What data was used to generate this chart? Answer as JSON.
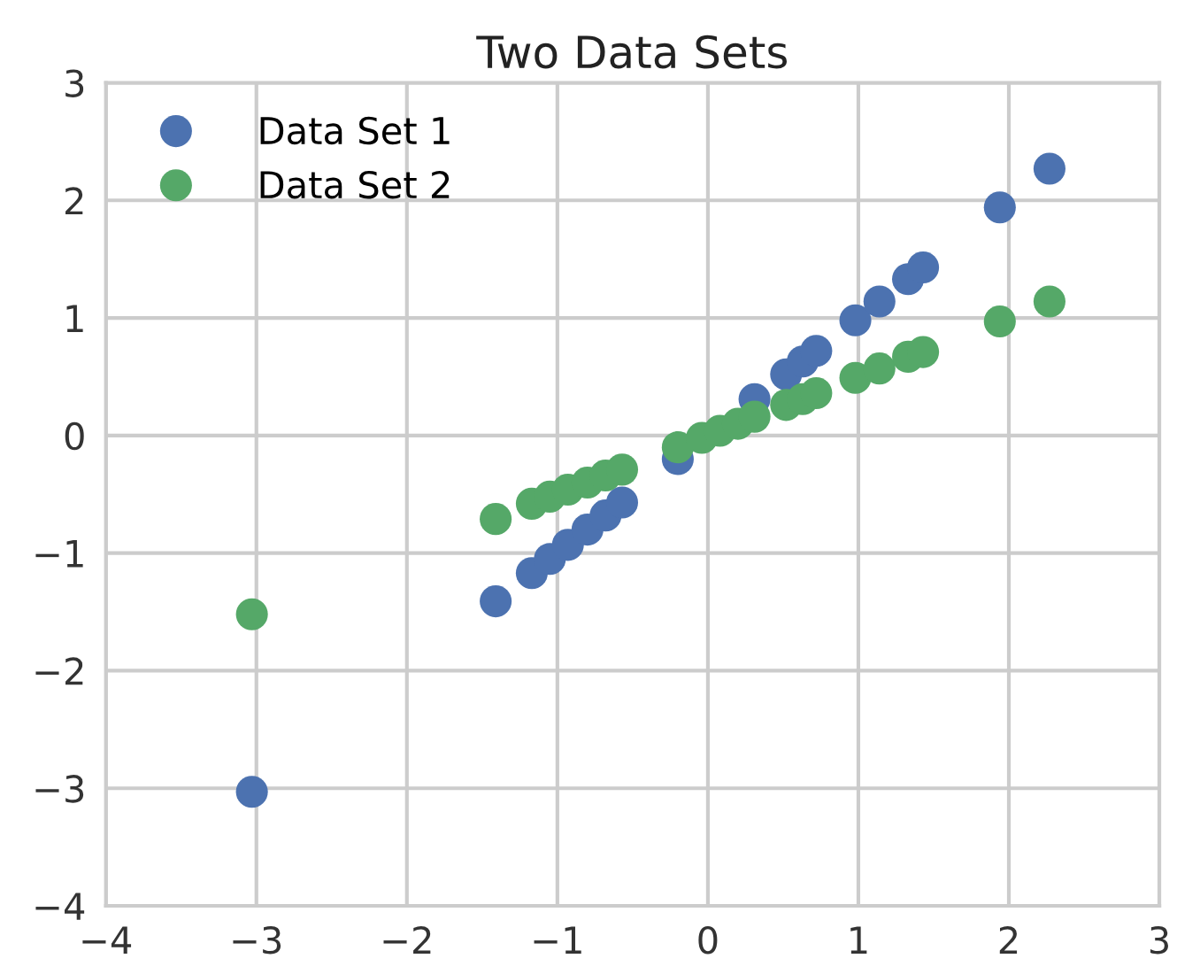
{
  "chart_data": {
    "type": "scatter",
    "title": "Two Data Sets",
    "marker": "circle",
    "grid": true,
    "legend": "top left",
    "xlim": [
      -4,
      3
    ],
    "xticks": [
      {
        "value": -4,
        "label": "−4"
      },
      {
        "value": -3,
        "label": "−3"
      },
      {
        "value": -2,
        "label": "−2"
      },
      {
        "value": -1,
        "label": "−1"
      },
      0,
      1,
      2,
      3
    ],
    "ylim": [
      -4,
      3
    ],
    "yticks": [
      {
        "value": -4,
        "label": "−4"
      },
      {
        "value": -3,
        "label": "−3"
      },
      {
        "value": -2,
        "label": "−2"
      },
      {
        "value": -1,
        "label": "−1"
      },
      0,
      1,
      2,
      3
    ],
    "x": [
      -3.03,
      -1.41,
      -1.17,
      -1.05,
      -0.93,
      -0.8,
      -0.68,
      -0.57,
      -0.2,
      -0.04,
      0.08,
      0.2,
      0.31,
      0.52,
      0.63,
      0.72,
      0.98,
      1.14,
      1.33,
      1.43,
      1.94,
      2.27
    ],
    "series": [
      {
        "name": "Data Set 1",
        "color": "#4c72b0",
        "values": [
          -3.03,
          -1.41,
          -1.17,
          -1.05,
          -0.93,
          -0.8,
          -0.68,
          -0.57,
          -0.2,
          null,
          null,
          null,
          0.31,
          0.52,
          0.63,
          0.72,
          0.98,
          1.14,
          1.33,
          1.43,
          1.94,
          2.27
        ]
      },
      {
        "name": "Data Set 2",
        "color": "#55a868",
        "values": [
          -1.52,
          -0.71,
          -0.58,
          -0.52,
          -0.46,
          -0.4,
          -0.34,
          -0.29,
          -0.1,
          -0.02,
          0.04,
          0.1,
          0.16,
          0.26,
          0.31,
          0.36,
          0.49,
          0.57,
          0.67,
          0.71,
          0.97,
          1.14
        ]
      }
    ]
  }
}
